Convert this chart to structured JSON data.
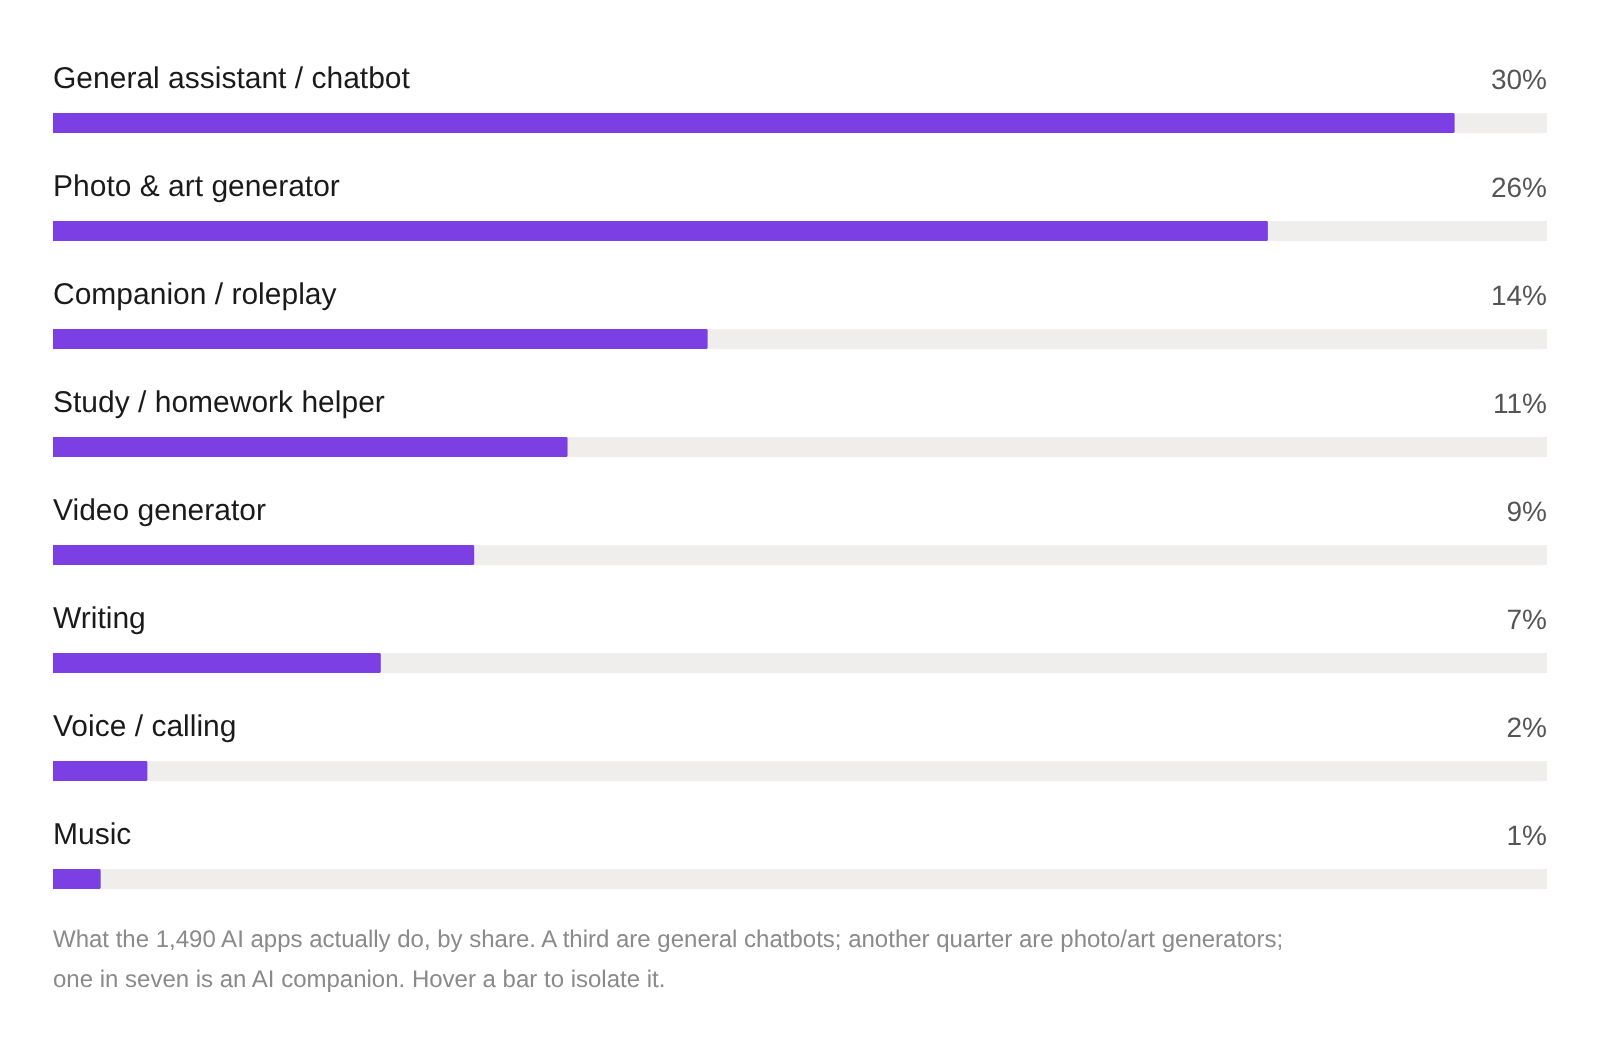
{
  "chart_data": {
    "type": "bar",
    "orientation": "horizontal",
    "categories": [
      "General assistant / chatbot",
      "Photo & art generator",
      "Companion / roleplay",
      "Study / homework helper",
      "Video generator",
      "Writing",
      "Voice / calling",
      "Music"
    ],
    "values": [
      30,
      26,
      14,
      11,
      9,
      7,
      2,
      1
    ],
    "value_labels": [
      "30%",
      "26%",
      "14%",
      "11%",
      "9%",
      "7%",
      "2%",
      "1%"
    ],
    "color": "#7b3fe4",
    "annotations": [
      "What the 1,490 AI apps actually do, by share. A third are general chatbots; another quarter are photo/art generators; one in seven is an AI companion. Hover a bar to isolate it."
    ]
  }
}
